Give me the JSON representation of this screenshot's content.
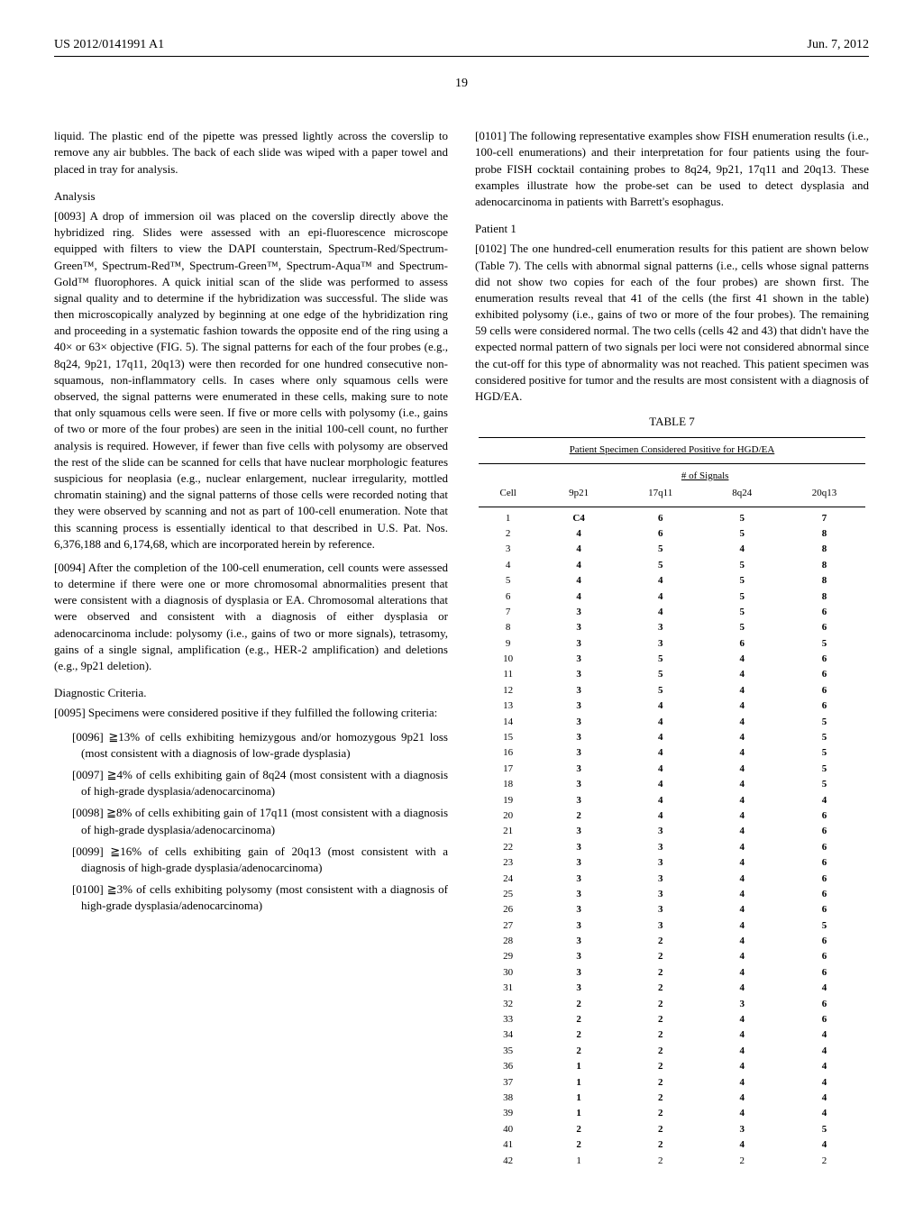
{
  "header": {
    "left": "US 2012/0141991 A1",
    "right": "Jun. 7, 2012"
  },
  "page_number": "19",
  "col1": {
    "p1": "liquid. The plastic end of the pipette was pressed lightly across the coverslip to remove any air bubbles. The back of each slide was wiped with a paper towel and placed in tray for analysis.",
    "analysis_heading": "Analysis",
    "p0093": "[0093] A drop of immersion oil was placed on the coverslip directly above the hybridized ring. Slides were assessed with an epi-fluorescence microscope equipped with filters to view the DAPI counterstain, Spectrum-Red/Spectrum-Green™, Spectrum-Red™, Spectrum-Green™, Spectrum-Aqua™ and Spectrum-Gold™ fluorophores. A quick initial scan of the slide was performed to assess signal quality and to determine if the hybridization was successful. The slide was then microscopically analyzed by beginning at one edge of the hybridization ring and proceeding in a systematic fashion towards the opposite end of the ring using a 40× or 63× objective (FIG. 5). The signal patterns for each of the four probes (e.g., 8q24, 9p21, 17q11, 20q13) were then recorded for one hundred consecutive non-squamous, non-inflammatory cells. In cases where only squamous cells were observed, the signal patterns were enumerated in these cells, making sure to note that only squamous cells were seen. If five or more cells with polysomy (i.e., gains of two or more of the four probes) are seen in the initial 100-cell count, no further analysis is required. However, if fewer than five cells with polysomy are observed the rest of the slide can be scanned for cells that have nuclear morphologic features suspicious for neoplasia (e.g., nuclear enlargement, nuclear irregularity, mottled chromatin staining) and the signal patterns of those cells were recorded noting that they were observed by scanning and not as part of 100-cell enumeration. Note that this scanning process is essentially identical to that described in U.S. Pat. Nos. 6,376,188 and 6,174,68, which are incorporated herein by reference.",
    "p0094": "[0094] After the completion of the 100-cell enumeration, cell counts were assessed to determine if there were one or more chromosomal abnormalities present that were consistent with a diagnosis of dysplasia or EA. Chromosomal alterations that were observed and consistent with a diagnosis of either dysplasia or adenocarcinoma include: polysomy (i.e., gains of two or more signals), tetrasomy, gains of a single signal, amplification (e.g., HER-2 amplification) and deletions (e.g., 9p21 deletion).",
    "diag_heading": "Diagnostic Criteria.",
    "p0095": "[0095] Specimens were considered positive if they fulfilled the following criteria:",
    "c0096": "[0096] ≧13% of cells exhibiting hemizygous and/or homozygous 9p21 loss (most consistent with a diagnosis of low-grade dysplasia)",
    "c0097": "[0097] ≧4% of cells exhibiting gain of 8q24 (most consistent with a diagnosis of high-grade dysplasia/adenocarcinoma)",
    "c0098": "[0098] ≧8% of cells exhibiting gain of 17q11 (most consistent with a diagnosis of high-grade dysplasia/adenocarcinoma)",
    "c0099": "[0099] ≧16% of cells exhibiting gain of 20q13 (most consistent with a diagnosis of high-grade dysplasia/adenocarcinoma)",
    "c0100": "[0100] ≧3% of cells exhibiting polysomy (most consistent with a diagnosis of high-grade dysplasia/adenocarcinoma)"
  },
  "col2": {
    "p0101": "[0101] The following representative examples show FISH enumeration results (i.e., 100-cell enumerations) and their interpretation for four patients using the four-probe FISH cocktail containing probes to 8q24, 9p21, 17q11 and 20q13. These examples illustrate how the probe-set can be used to detect dysplasia and adenocarcinoma in patients with Barrett's esophagus.",
    "patient_heading": "Patient 1",
    "p0102": "[0102] The one hundred-cell enumeration results for this patient are shown below (Table 7). The cells with abnormal signal patterns (i.e., cells whose signal patterns did not show two copies for each of the four probes) are shown first. The enumeration results reveal that 41 of the cells (the first 41 shown in the table) exhibited polysomy (i.e., gains of two or more of the four probes). The remaining 59 cells were considered normal. The two cells (cells 42 and 43) that didn't have the expected normal pattern of two signals per loci were not considered abnormal since the cut-off for this type of abnormality was not reached. This patient specimen was considered positive for tumor and the results are most consistent with a diagnosis of HGD/EA."
  },
  "table7": {
    "label": "TABLE 7",
    "title": "Patient Specimen Considered Positive for HGD/EA",
    "signals_label": "# of Signals",
    "columns": [
      "Cell",
      "9p21",
      "17q11",
      "8q24",
      "20q13"
    ],
    "rows": [
      [
        "1",
        "C4",
        "6",
        "5",
        "7"
      ],
      [
        "2",
        "4",
        "6",
        "5",
        "8"
      ],
      [
        "3",
        "4",
        "5",
        "4",
        "8"
      ],
      [
        "4",
        "4",
        "5",
        "5",
        "8"
      ],
      [
        "5",
        "4",
        "4",
        "5",
        "8"
      ],
      [
        "6",
        "4",
        "4",
        "5",
        "8"
      ],
      [
        "7",
        "3",
        "4",
        "5",
        "6"
      ],
      [
        "8",
        "3",
        "3",
        "5",
        "6"
      ],
      [
        "9",
        "3",
        "3",
        "6",
        "5"
      ],
      [
        "10",
        "3",
        "5",
        "4",
        "6"
      ],
      [
        "11",
        "3",
        "5",
        "4",
        "6"
      ],
      [
        "12",
        "3",
        "5",
        "4",
        "6"
      ],
      [
        "13",
        "3",
        "4",
        "4",
        "6"
      ],
      [
        "14",
        "3",
        "4",
        "4",
        "5"
      ],
      [
        "15",
        "3",
        "4",
        "4",
        "5"
      ],
      [
        "16",
        "3",
        "4",
        "4",
        "5"
      ],
      [
        "17",
        "3",
        "4",
        "4",
        "5"
      ],
      [
        "18",
        "3",
        "4",
        "4",
        "5"
      ],
      [
        "19",
        "3",
        "4",
        "4",
        "4"
      ],
      [
        "20",
        "2",
        "4",
        "4",
        "6"
      ],
      [
        "21",
        "3",
        "3",
        "4",
        "6"
      ],
      [
        "22",
        "3",
        "3",
        "4",
        "6"
      ],
      [
        "23",
        "3",
        "3",
        "4",
        "6"
      ],
      [
        "24",
        "3",
        "3",
        "4",
        "6"
      ],
      [
        "25",
        "3",
        "3",
        "4",
        "6"
      ],
      [
        "26",
        "3",
        "3",
        "4",
        "6"
      ],
      [
        "27",
        "3",
        "3",
        "4",
        "5"
      ],
      [
        "28",
        "3",
        "2",
        "4",
        "6"
      ],
      [
        "29",
        "3",
        "2",
        "4",
        "6"
      ],
      [
        "30",
        "3",
        "2",
        "4",
        "6"
      ],
      [
        "31",
        "3",
        "2",
        "4",
        "4"
      ],
      [
        "32",
        "2",
        "2",
        "3",
        "6"
      ],
      [
        "33",
        "2",
        "2",
        "4",
        "6"
      ],
      [
        "34",
        "2",
        "2",
        "4",
        "4"
      ],
      [
        "35",
        "2",
        "2",
        "4",
        "4"
      ],
      [
        "36",
        "1",
        "2",
        "4",
        "4"
      ],
      [
        "37",
        "1",
        "2",
        "4",
        "4"
      ],
      [
        "38",
        "1",
        "2",
        "4",
        "4"
      ],
      [
        "39",
        "1",
        "2",
        "4",
        "4"
      ],
      [
        "40",
        "2",
        "2",
        "3",
        "5"
      ],
      [
        "41",
        "2",
        "2",
        "4",
        "4"
      ],
      [
        "42",
        "1",
        "2",
        "2",
        "2"
      ]
    ]
  }
}
